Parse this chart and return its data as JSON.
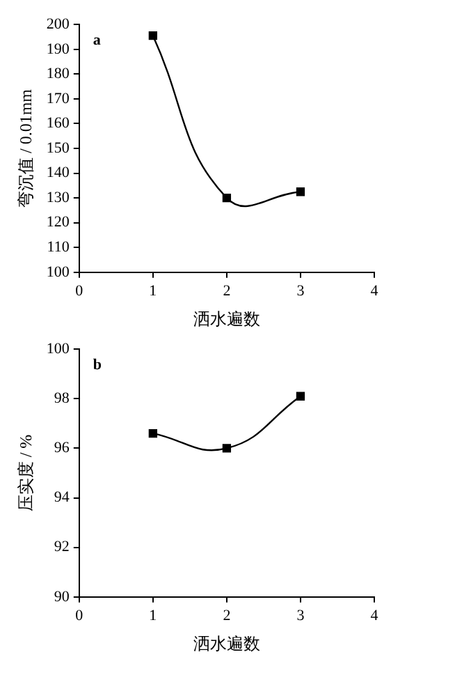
{
  "chart_data": [
    {
      "type": "line",
      "annotations": [
        "a"
      ],
      "xlabel": "洒水遍数",
      "ylabel": "弯沉值 / 0.01mm",
      "marker": "square",
      "grid": false,
      "legend": false,
      "x": [
        1,
        2,
        3
      ],
      "xlim": [
        0,
        4
      ],
      "xticks": [
        0,
        1,
        2,
        3,
        4
      ],
      "ylim": [
        100,
        200
      ],
      "yticks": [
        100,
        110,
        120,
        130,
        140,
        150,
        160,
        170,
        180,
        190,
        200
      ],
      "series": [
        {
          "color": "#000000",
          "values": [
            195.5,
            130,
            132.5
          ]
        }
      ]
    },
    {
      "type": "line",
      "annotations": [
        "b"
      ],
      "xlabel": "洒水遍数",
      "ylabel": "压实度 / %",
      "marker": "square",
      "grid": false,
      "legend": false,
      "x": [
        1,
        2,
        3
      ],
      "xlim": [
        0,
        4
      ],
      "xticks": [
        0,
        1,
        2,
        3,
        4
      ],
      "ylim": [
        90,
        100
      ],
      "yticks": [
        90,
        92,
        94,
        96,
        98,
        100
      ],
      "series": [
        {
          "color": "#000000",
          "values": [
            96.6,
            96.0,
            98.1
          ]
        }
      ]
    }
  ]
}
